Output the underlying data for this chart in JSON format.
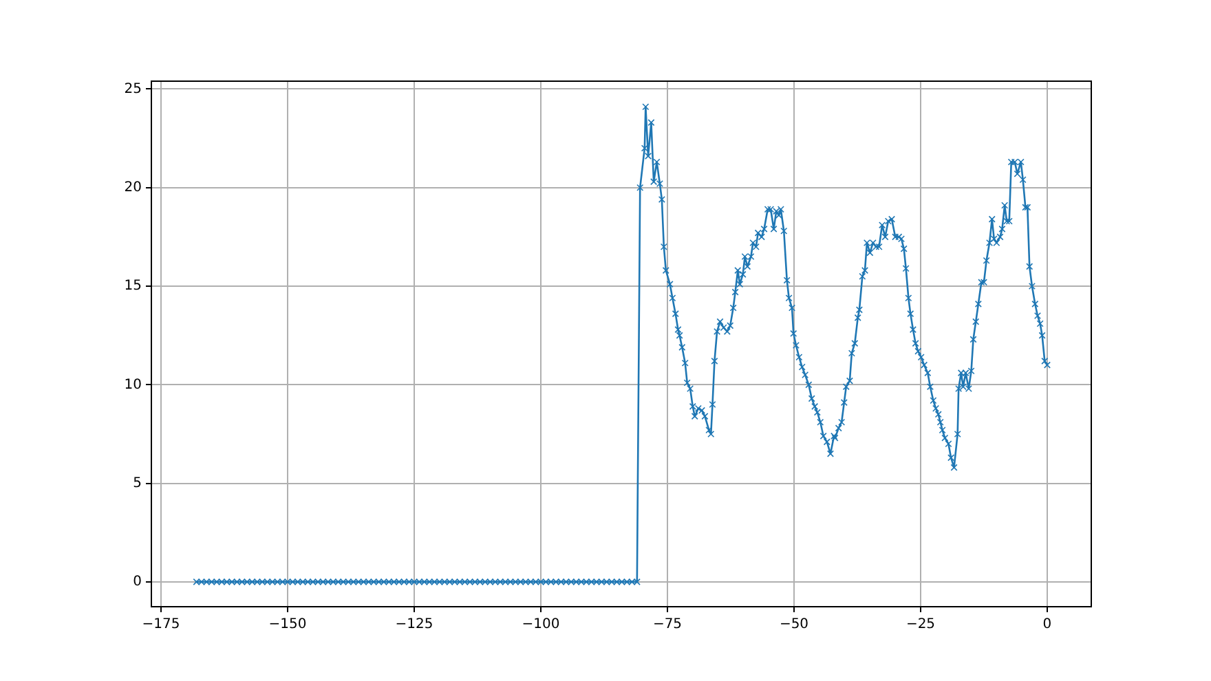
{
  "chart_data": {
    "type": "line",
    "xlim": [
      -176.9,
      8.7
    ],
    "ylim": [
      -1.26,
      25.4
    ],
    "xticks": [
      {
        "value": -175,
        "label": "−175"
      },
      {
        "value": -150,
        "label": "−150"
      },
      {
        "value": -125,
        "label": "−125"
      },
      {
        "value": -100,
        "label": "−100"
      },
      {
        "value": -75,
        "label": "−75"
      },
      {
        "value": -50,
        "label": "−50"
      },
      {
        "value": -25,
        "label": "−25"
      },
      0
    ],
    "yticks": [
      0,
      5,
      10,
      15,
      20,
      25
    ],
    "grid": true,
    "marker": "cross",
    "line_style": "solid",
    "series": [
      {
        "color": "#1f77b4",
        "x": [
          -168,
          -167,
          -166,
          -165,
          -164,
          -163,
          -162,
          -161,
          -160,
          -159,
          -158,
          -157,
          -156,
          -155,
          -154,
          -153,
          -152,
          -151,
          -150,
          -149,
          -148,
          -147,
          -146,
          -145,
          -144,
          -143,
          -142,
          -141,
          -140,
          -139,
          -138,
          -137,
          -136,
          -135,
          -134,
          -133,
          -132,
          -131,
          -130,
          -129,
          -128,
          -127,
          -126,
          -125,
          -124,
          -123,
          -122,
          -121,
          -120,
          -119,
          -118,
          -117,
          -116,
          -115,
          -114,
          -113,
          -112,
          -111,
          -110,
          -109,
          -108,
          -107,
          -106,
          -105,
          -104,
          -103,
          -102,
          -101,
          -100,
          -99,
          -98,
          -97,
          -96,
          -95,
          -94,
          -93,
          -92,
          -91,
          -90,
          -89,
          -88,
          -87,
          -86,
          -85,
          -84,
          -83,
          -82,
          -81,
          -80.4,
          -79.5,
          -79.3,
          -78.8,
          -78.2,
          -77.7,
          -77.1,
          -76.5,
          -76.1,
          -75.7,
          -75.3,
          -74.5,
          -74.0,
          -73.4,
          -72.9,
          -72.6,
          -72.1,
          -71.5,
          -71.1,
          -70.5,
          -70.0,
          -69.6,
          -68.9,
          -68.2,
          -67.6,
          -66.8,
          -66.4,
          -66.1,
          -65.7,
          -65.2,
          -64.6,
          -63.9,
          -63.2,
          -62.6,
          -62.0,
          -61.6,
          -61.1,
          -60.7,
          -60.1,
          -59.7,
          -59.2,
          -58.5,
          -58.1,
          -57.5,
          -57.1,
          -56.4,
          -55.9,
          -55.2,
          -54.6,
          -54.0,
          -53.5,
          -53.0,
          -52.6,
          -52.0,
          -51.4,
          -51.0,
          -50.4,
          -50.1,
          -49.6,
          -49.0,
          -48.4,
          -47.8,
          -47.1,
          -46.5,
          -45.9,
          -45.4,
          -44.8,
          -44.2,
          -43.5,
          -42.8,
          -42.1,
          -41.9,
          -41.2,
          -40.6,
          -40.1,
          -39.7,
          -39.0,
          -38.6,
          -38.0,
          -37.4,
          -37.1,
          -36.5,
          -36.0,
          -35.6,
          -35.0,
          -34.4,
          -33.8,
          -33.2,
          -32.6,
          -32.0,
          -31.4,
          -30.7,
          -30.0,
          -29.3,
          -28.8,
          -28.3,
          -27.9,
          -27.4,
          -27.0,
          -26.5,
          -26.0,
          -25.5,
          -24.9,
          -24.3,
          -23.6,
          -23.1,
          -22.5,
          -22.0,
          -21.5,
          -21.1,
          -20.7,
          -20.2,
          -19.5,
          -19.0,
          -18.4,
          -17.7,
          -17.5,
          -17.0,
          -16.6,
          -16.1,
          -15.5,
          -15.0,
          -14.6,
          -14.1,
          -13.6,
          -13.0,
          -12.5,
          -12.0,
          -11.4,
          -10.9,
          -10.5,
          -10.0,
          -9.3,
          -8.9,
          -8.4,
          -8.0,
          -7.5,
          -7.1,
          -6.4,
          -5.9,
          -5.2,
          -4.8,
          -4.3,
          -3.9,
          -3.5,
          -3.0,
          -2.4,
          -1.9,
          -1.4,
          -1.0,
          -0.5,
          0
        ],
        "values": [
          0,
          0,
          0,
          0,
          0,
          0,
          0,
          0,
          0,
          0,
          0,
          0,
          0,
          0,
          0,
          0,
          0,
          0,
          0,
          0,
          0,
          0,
          0,
          0,
          0,
          0,
          0,
          0,
          0,
          0,
          0,
          0,
          0,
          0,
          0,
          0,
          0,
          0,
          0,
          0,
          0,
          0,
          0,
          0,
          0,
          0,
          0,
          0,
          0,
          0,
          0,
          0,
          0,
          0,
          0,
          0,
          0,
          0,
          0,
          0,
          0,
          0,
          0,
          0,
          0,
          0,
          0,
          0,
          0,
          0,
          0,
          0,
          0,
          0,
          0,
          0,
          0,
          0,
          0,
          0,
          0,
          0,
          0,
          0,
          0,
          0,
          0,
          0,
          20.0,
          22.0,
          24.1,
          21.6,
          23.3,
          20.3,
          21.3,
          20.2,
          19.4,
          17.0,
          15.8,
          15.1,
          14.4,
          13.6,
          12.8,
          12.5,
          11.9,
          11.1,
          10.1,
          9.8,
          8.9,
          8.4,
          8.8,
          8.7,
          8.4,
          7.7,
          7.5,
          9.0,
          11.2,
          12.7,
          13.2,
          12.9,
          12.7,
          13.0,
          13.9,
          14.7,
          15.8,
          15.1,
          15.6,
          16.5,
          16.0,
          16.5,
          17.2,
          17.0,
          17.7,
          17.5,
          17.9,
          18.9,
          18.9,
          17.9,
          18.8,
          18.6,
          18.9,
          17.8,
          15.3,
          14.4,
          13.9,
          12.6,
          12.0,
          11.4,
          10.9,
          10.5,
          10.0,
          9.3,
          8.9,
          8.6,
          8.1,
          7.4,
          7.1,
          6.5,
          7.4,
          7.3,
          7.8,
          8.1,
          9.1,
          9.9,
          10.2,
          11.6,
          12.1,
          13.4,
          13.8,
          15.5,
          15.8,
          17.2,
          16.7,
          17.2,
          17.0,
          17.0,
          18.1,
          17.5,
          18.3,
          18.4,
          17.5,
          17.5,
          17.4,
          16.9,
          15.9,
          14.4,
          13.6,
          12.8,
          12.1,
          11.7,
          11.4,
          11.0,
          10.6,
          9.9,
          9.2,
          8.8,
          8.5,
          8.1,
          7.7,
          7.3,
          7.0,
          6.3,
          5.8,
          7.5,
          9.8,
          10.6,
          9.9,
          10.6,
          9.8,
          10.7,
          12.3,
          13.2,
          14.1,
          15.2,
          15.2,
          16.3,
          17.2,
          18.4,
          17.4,
          17.2,
          17.5,
          17.9,
          19.1,
          18.3,
          18.3,
          21.3,
          21.3,
          20.7,
          21.3,
          20.4,
          19.0,
          19.0,
          16.0,
          15.0,
          14.1,
          13.5,
          13.1,
          12.5,
          11.2,
          11.0
        ]
      }
    ]
  }
}
